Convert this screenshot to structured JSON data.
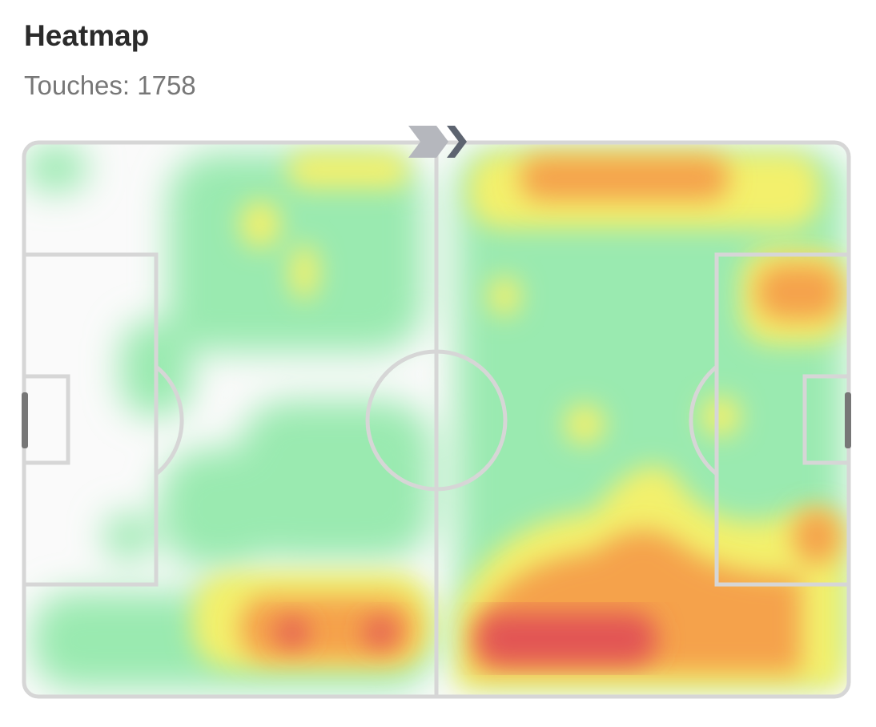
{
  "header": {
    "title": "Heatmap",
    "subtitle": "Touches: 1758"
  }
}
